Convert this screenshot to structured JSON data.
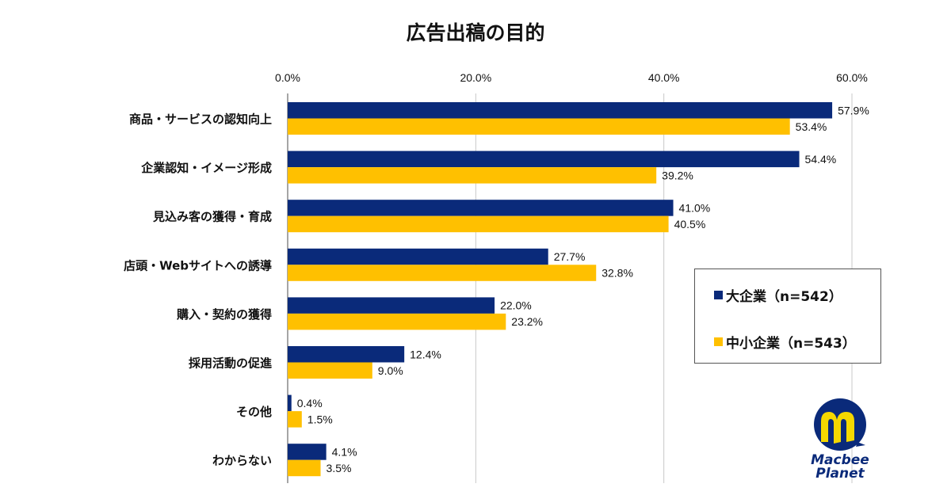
{
  "chart_data": {
    "type": "bar",
    "orientation": "horizontal",
    "title": "広告出稿の目的",
    "xlabel": "",
    "ylabel": "",
    "xlim": [
      0,
      60
    ],
    "x_ticks": [
      "0.0%",
      "20.0%",
      "40.0%",
      "60.0%"
    ],
    "x_tick_values": [
      0,
      20,
      40,
      60
    ],
    "grid": true,
    "legend_position": "right",
    "categories": [
      "商品・サービスの認知向上",
      "企業認知・イメージ形成",
      "見込み客の獲得・育成",
      "店頭・Webサイトへの誘導",
      "購入・契約の獲得",
      "採用活動の促進",
      "その他",
      "わからない"
    ],
    "series": [
      {
        "name": "大企業（n=542）",
        "color": "#0a2a7a",
        "values": [
          57.9,
          54.4,
          41.0,
          27.7,
          22.0,
          12.4,
          0.4,
          4.1
        ],
        "labels": [
          "57.9%",
          "54.4%",
          "41.0%",
          "27.7%",
          "22.0%",
          "12.4%",
          "0.4%",
          "4.1%"
        ]
      },
      {
        "name": "中小企業（n=543）",
        "color": "#ffc000",
        "values": [
          53.4,
          39.2,
          40.5,
          32.8,
          23.2,
          9.0,
          1.5,
          3.5
        ],
        "labels": [
          "53.4%",
          "39.2%",
          "40.5%",
          "32.8%",
          "23.2%",
          "9.0%",
          "1.5%",
          "3.5%"
        ]
      }
    ]
  },
  "logo": {
    "name": "Macbee Planet",
    "line1": "Macbee",
    "line2": "Planet",
    "colors": {
      "navy": "#0a2a7a",
      "yellow": "#f5d800"
    }
  }
}
